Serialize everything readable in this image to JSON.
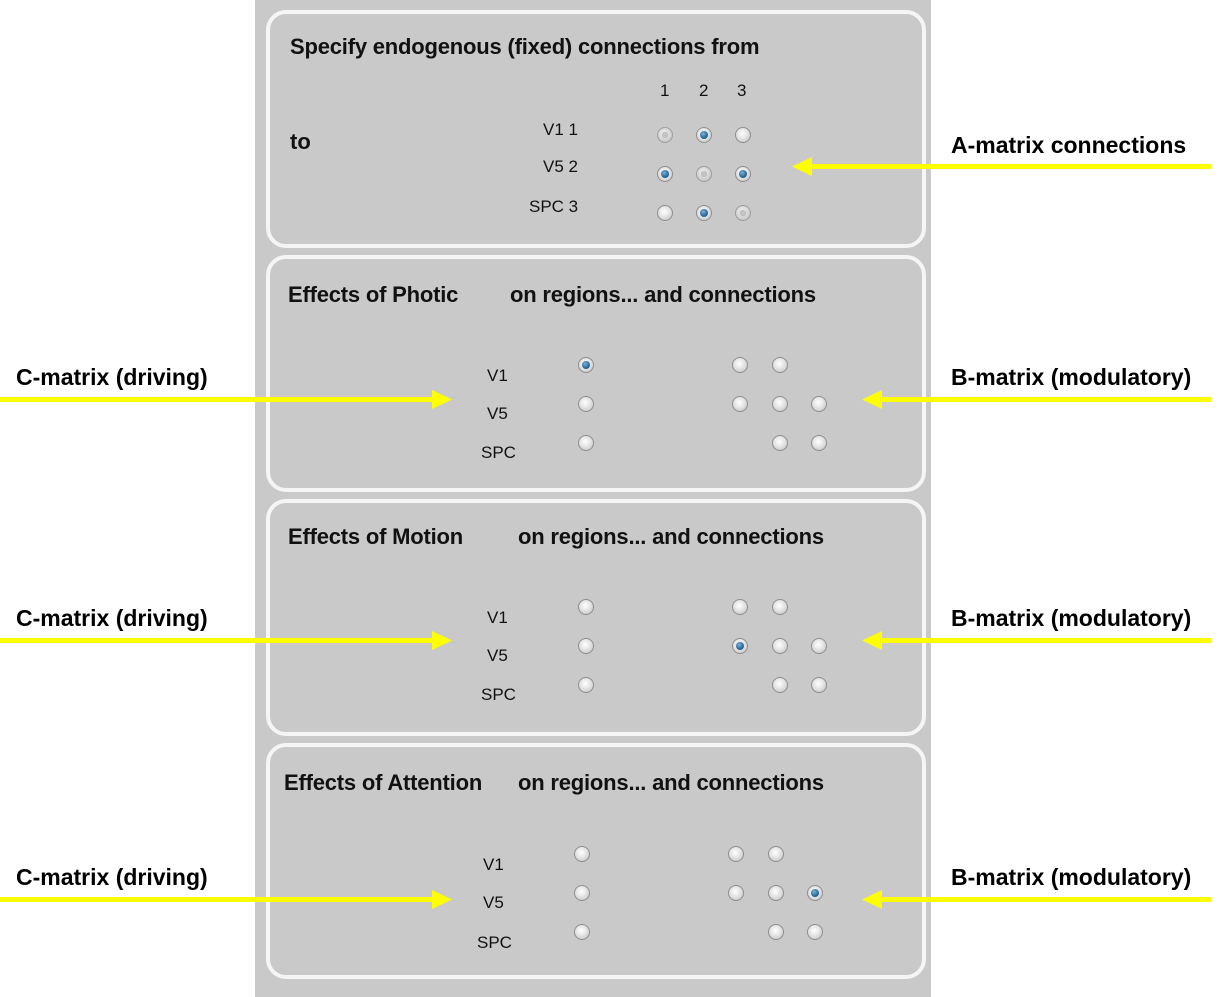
{
  "panel_a": {
    "title": "Specify endogenous (fixed) connections from",
    "to_label": "to",
    "column_numbers": [
      "1",
      "2",
      "3"
    ],
    "rows": [
      "V1 1",
      "V5 2",
      "SPC 3"
    ],
    "matrix": [
      [
        "unselected",
        "selected",
        "unselected"
      ],
      [
        "selected",
        "unselected",
        "selected"
      ],
      [
        "unselected",
        "selected",
        "unselected"
      ]
    ]
  },
  "effect_panels": [
    {
      "title_input": "Effects of Photic",
      "title_rest": "on regions... and connections",
      "regions": [
        "V1",
        "V5",
        "SPC"
      ],
      "c_matrix": [
        true,
        false,
        false
      ],
      "b_matrix": [
        [
          false,
          false
        ],
        [
          false,
          false,
          false
        ],
        [
          false,
          false
        ]
      ]
    },
    {
      "title_input": "Effects of Motion",
      "title_rest": "on regions... and connections",
      "regions": [
        "V1",
        "V5",
        "SPC"
      ],
      "c_matrix": [
        false,
        false,
        false
      ],
      "b_matrix": [
        [
          false,
          false
        ],
        [
          true,
          false,
          false
        ],
        [
          false,
          false
        ]
      ]
    },
    {
      "title_input": "Effects of Attention",
      "title_rest": "on regions... and connections",
      "regions": [
        "V1",
        "V5",
        "SPC"
      ],
      "c_matrix": [
        false,
        false,
        false
      ],
      "b_matrix": [
        [
          false,
          false
        ],
        [
          false,
          false,
          true
        ],
        [
          false,
          false
        ]
      ]
    }
  ],
  "annotations": {
    "a_matrix": "A-matrix connections",
    "c_matrix": "C-matrix (driving)",
    "b_matrix": "B-matrix (modulatory)"
  },
  "colors": {
    "arrow": "#ffff00",
    "panel_background": "#c9c9c9",
    "panel_border": "#f5f5f5",
    "radio_selected": "#1f6a9a"
  }
}
